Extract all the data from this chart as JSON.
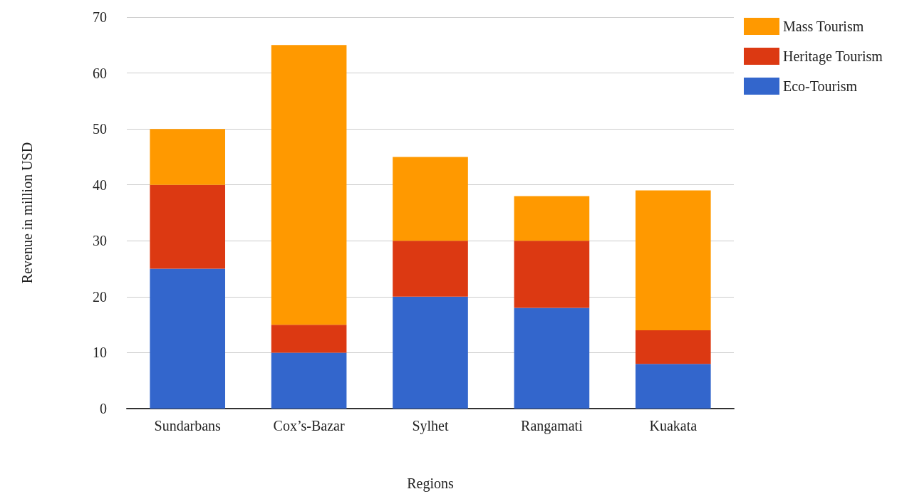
{
  "chart_data": {
    "type": "bar",
    "stacked": true,
    "xlabel": "Regions",
    "ylabel": "Revenue in million USD",
    "categories": [
      "Sundarbans",
      "Cox’s-Bazar",
      "Sylhet",
      "Rangamati",
      "Kuakata"
    ],
    "series": [
      {
        "name": "Eco-Tourism",
        "color": "#3366cc",
        "values": [
          25,
          10,
          20,
          18,
          8
        ]
      },
      {
        "name": "Heritage Tourism",
        "color": "#dc3912",
        "values": [
          15,
          5,
          10,
          12,
          6
        ]
      },
      {
        "name": "Mass Tourism",
        "color": "#ff9900",
        "values": [
          10,
          50,
          15,
          8,
          25
        ]
      }
    ],
    "ylim": [
      0,
      70
    ],
    "yticks": [
      0,
      10,
      20,
      30,
      40,
      50,
      60,
      70
    ],
    "grid": "y",
    "legend": "top right"
  }
}
